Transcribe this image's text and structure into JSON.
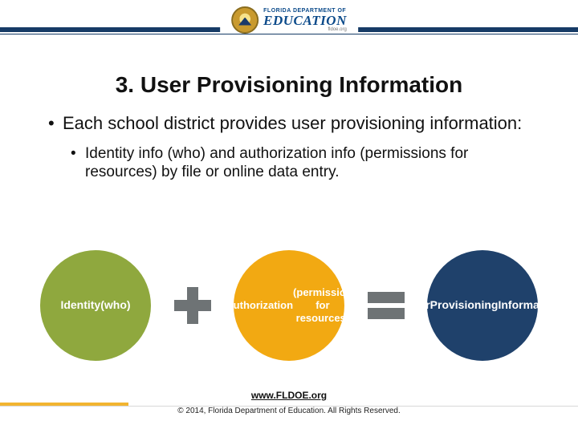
{
  "header": {
    "org_small": "FLORIDA DEPARTMENT OF",
    "org_big": "EDUCATION",
    "org_url": "fldoe.org",
    "bar_color": "#163b66",
    "logo_colors": {
      "rim": "#8a6d1f",
      "face": "#f7e28a",
      "accent": "#1a3a6a"
    }
  },
  "title": "3.  User Provisioning Information",
  "bullets": {
    "level1": "Each school district provides user provisioning information:",
    "level2": "Identity info (who) and authorization info (permissions for resources) by file or online data entry."
  },
  "diagram": {
    "circle1": {
      "label": "Identity\n(who)",
      "color": "#8fa83e"
    },
    "operator1": {
      "type": "plus",
      "color": "#6e7375"
    },
    "circle2": {
      "label": "Authorization\n(permission for resources)",
      "color": "#f2a912"
    },
    "operator2": {
      "type": "equals",
      "color": "#6e7375"
    },
    "circle3": {
      "label": "User\nProvisioning\nInformation",
      "color": "#1f416b"
    }
  },
  "footer": {
    "link_text": "www.FLDOE.org",
    "link_color": "#111111",
    "copyright": "© 2014, Florida Department of Education. All Rights Reserved.",
    "accent_color": "#f2b430"
  },
  "text_color": "#111111",
  "background_color": "#ffffff"
}
